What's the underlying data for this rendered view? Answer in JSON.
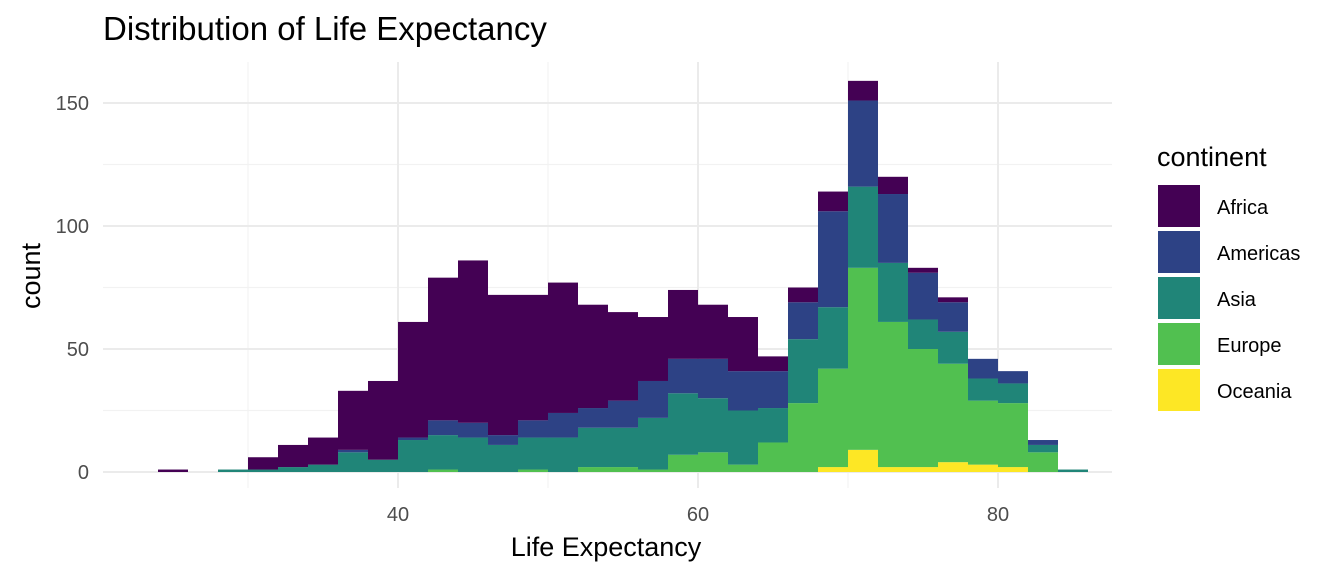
{
  "chart_data": {
    "type": "bar",
    "subtype": "stacked-histogram",
    "title": "Distribution of Life Expectancy",
    "xlabel": "Life Expectancy",
    "ylabel": "count",
    "xlim": [
      22.5,
      87.5
    ],
    "ylim": [
      0,
      165
    ],
    "x_ticks": [
      40,
      60,
      80
    ],
    "y_ticks": [
      0,
      50,
      100,
      150
    ],
    "grid": true,
    "legend_position": "right",
    "bin_width": 2,
    "bin_starts": [
      24,
      26,
      28,
      30,
      32,
      34,
      36,
      38,
      40,
      42,
      44,
      46,
      48,
      50,
      52,
      54,
      56,
      58,
      60,
      62,
      64,
      66,
      68,
      70,
      72,
      74,
      76,
      78,
      80,
      82,
      84
    ],
    "stack_order_top_to_bottom": [
      "Africa",
      "Americas",
      "Asia",
      "Europe",
      "Oceania"
    ],
    "series": [
      {
        "name": "Africa",
        "color": "#440154",
        "values": [
          1,
          0,
          0,
          5,
          9,
          11,
          24,
          32,
          47,
          58,
          66,
          57,
          51,
          53,
          42,
          36,
          26,
          28,
          22,
          22,
          6,
          6,
          8,
          8,
          7,
          2,
          2,
          0,
          0,
          0,
          0
        ]
      },
      {
        "name": "Americas",
        "color": "#2D4285",
        "values": [
          0,
          0,
          0,
          0,
          0,
          0,
          1,
          0,
          1,
          6,
          6,
          4,
          7,
          10,
          8,
          11,
          15,
          14,
          16,
          16,
          15,
          15,
          39,
          35,
          28,
          19,
          12,
          8,
          5,
          2,
          0
        ]
      },
      {
        "name": "Asia",
        "color": "#208578",
        "values": [
          0,
          0,
          1,
          1,
          2,
          3,
          8,
          5,
          13,
          14,
          14,
          11,
          13,
          14,
          16,
          16,
          21,
          25,
          22,
          22,
          14,
          26,
          25,
          33,
          24,
          12,
          13,
          9,
          8,
          3,
          1
        ]
      },
      {
        "name": "Europe",
        "color": "#51C050",
        "values": [
          0,
          0,
          0,
          0,
          0,
          0,
          0,
          0,
          0,
          1,
          0,
          0,
          1,
          0,
          2,
          2,
          1,
          7,
          8,
          3,
          12,
          28,
          40,
          74,
          59,
          48,
          40,
          26,
          26,
          8,
          0
        ]
      },
      {
        "name": "Oceania",
        "color": "#FDE725",
        "values": [
          0,
          0,
          0,
          0,
          0,
          0,
          0,
          0,
          0,
          0,
          0,
          0,
          0,
          0,
          0,
          0,
          0,
          0,
          0,
          0,
          0,
          0,
          2,
          9,
          2,
          2,
          4,
          3,
          2,
          0,
          0
        ]
      }
    ]
  }
}
